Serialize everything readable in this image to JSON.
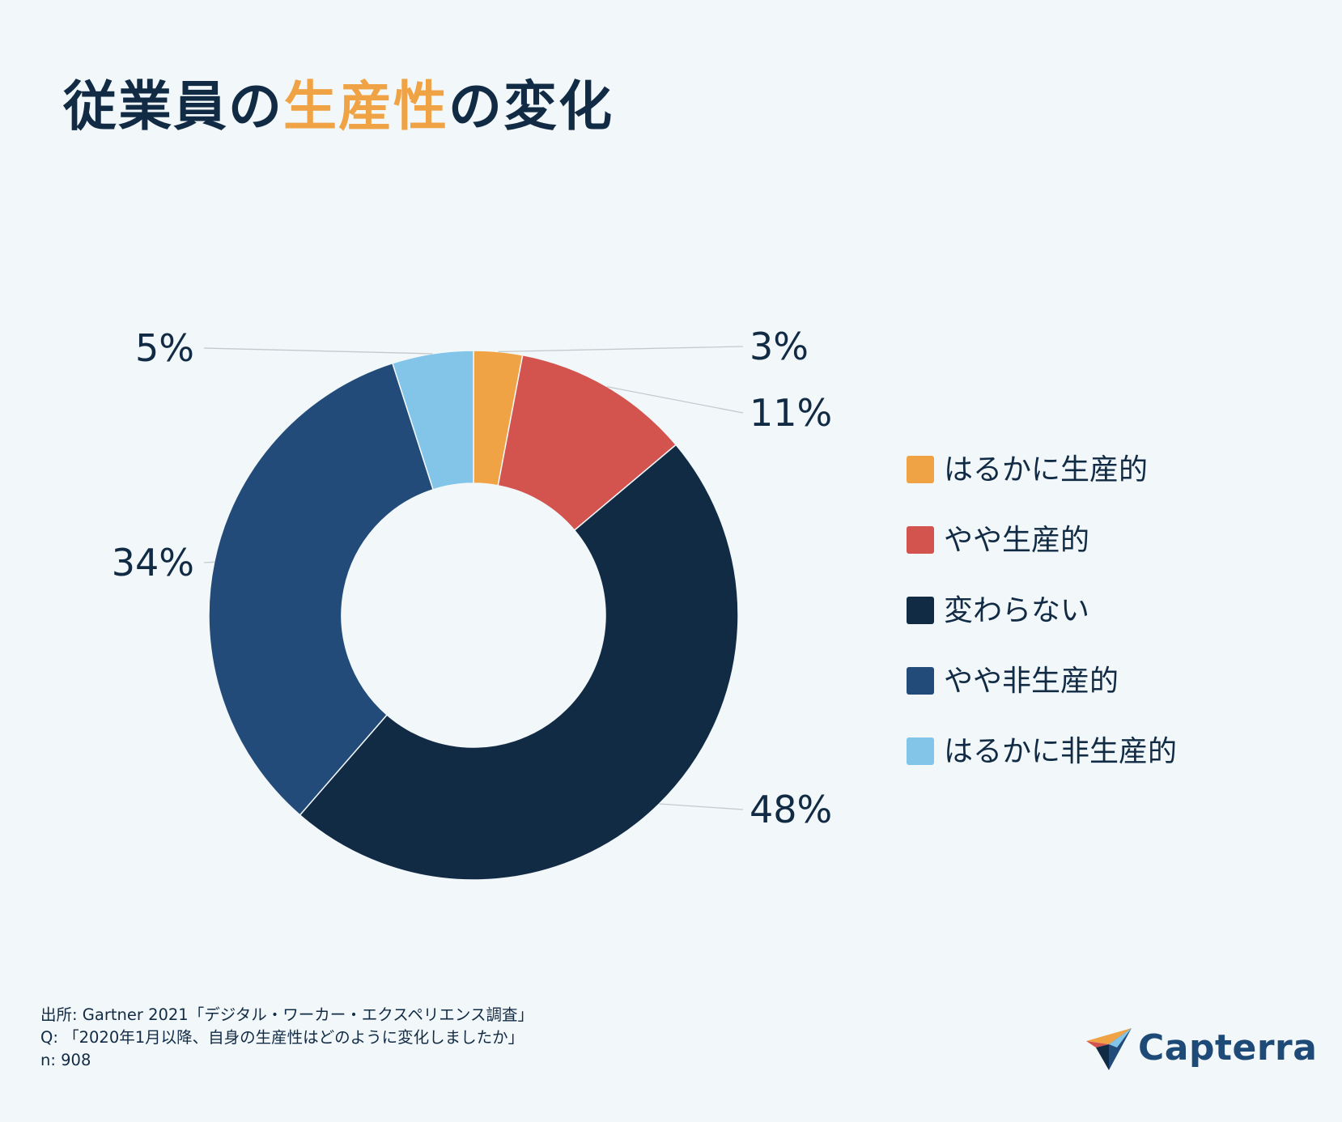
{
  "title": {
    "part1": "従業員の",
    "highlight": "生産性",
    "part2": "の変化"
  },
  "colors": {
    "title_highlight": "#f0a345",
    "text": "#122b45",
    "background": "#f2f7f9"
  },
  "chart_data": {
    "type": "pie",
    "donut": true,
    "categories": [
      "はるかに生産的",
      "やや生産的",
      "変わらない",
      "やや非生産的",
      "はるかに非生産的"
    ],
    "values": [
      3,
      11,
      48,
      34,
      5
    ],
    "labels": [
      "3%",
      "11%",
      "48%",
      "34%",
      "5%"
    ],
    "colors": [
      "#f0a345",
      "#d3534e",
      "#122b45",
      "#234b79",
      "#82c5e9"
    ],
    "legend_position": "right"
  },
  "source": {
    "line1": "出所: Gartner 2021「デジタル・ワーカー・エクスペリエンス調査」",
    "line2": "Q: 「2020年1月以降、自身の生産性はどのように変化しましたか」",
    "line3": "n: 908"
  },
  "logo": {
    "text": "Capterra",
    "icon": "capterra-arrow-icon"
  }
}
